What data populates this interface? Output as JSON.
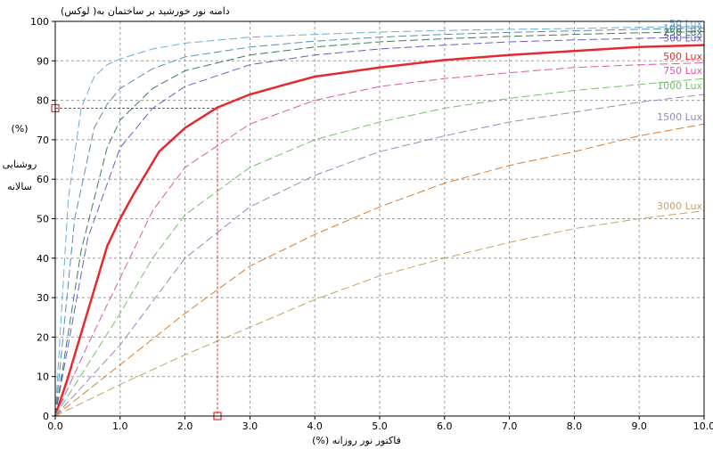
{
  "chart_data": {
    "type": "line",
    "title": "دامنه نور خورشید بر ساختمان به( لوکس)",
    "xlabel": "(%) فاکتور نور روزانه",
    "ylabel_lines": [
      "(%)",
      "روشنایی",
      "سالانه"
    ],
    "xlim": [
      0,
      10
    ],
    "ylim": [
      0,
      100
    ],
    "x_ticks": [
      "0.0",
      "1.0",
      "2.0",
      "3.0",
      "4.0",
      "5.0",
      "6.0",
      "7.0",
      "8.0",
      "9.0",
      "10.0"
    ],
    "y_ticks": [
      "0",
      "10",
      "20",
      "30",
      "40",
      "50",
      "60",
      "70",
      "80",
      "90",
      "100"
    ],
    "grid": true,
    "series": [
      {
        "name": "50 Lux",
        "color": "#6aaed8",
        "style": "dashed",
        "label_y": 99.5,
        "x": [
          0,
          0.2,
          0.4,
          0.6,
          0.8,
          1.0,
          1.5,
          2,
          3,
          4,
          5,
          6,
          7,
          8,
          9,
          10
        ],
        "y": [
          0,
          55,
          78,
          86,
          89,
          90.5,
          93,
          94.5,
          96,
          96.7,
          97.3,
          97.7,
          98,
          98.2,
          98.5,
          98.7
        ]
      },
      {
        "name": "100 Lux",
        "color": "#5a8bb3",
        "style": "dashed",
        "label_y": 98.3,
        "x": [
          0,
          0.3,
          0.6,
          0.8,
          1.0,
          1.5,
          2,
          3,
          4,
          5,
          6,
          7,
          8,
          9,
          10
        ],
        "y": [
          0,
          50,
          73,
          79,
          83,
          88,
          91,
          93.5,
          95,
          96,
          96.7,
          97.2,
          97.6,
          98,
          98.3
        ]
      },
      {
        "name": "250 Lux",
        "color": "#3f7a5e",
        "style": "dashed",
        "label_y": 97.3,
        "x": [
          0,
          0.4,
          0.8,
          1.0,
          1.5,
          2,
          3,
          4,
          5,
          6,
          7,
          8,
          9,
          10
        ],
        "y": [
          0,
          42,
          68,
          75,
          83,
          87.5,
          91.5,
          93.5,
          94.8,
          95.6,
          96.2,
          96.7,
          97.1,
          97.4
        ]
      },
      {
        "name": "300 Lux",
        "color": "#6a5acd",
        "style": "dashed",
        "label_y": 95.8,
        "x": [
          0,
          0.5,
          1.0,
          1.5,
          2,
          3,
          4,
          5,
          6,
          7,
          8,
          9,
          10
        ],
        "y": [
          0,
          45,
          68,
          78,
          83.5,
          89,
          91.5,
          93,
          94,
          94.8,
          95.3,
          95.7,
          96
        ]
      },
      {
        "name": "500 Lux",
        "color": "#e8282e",
        "style": "solid",
        "label_y": 91.2,
        "x": [
          0,
          0.2,
          0.4,
          0.6,
          0.8,
          1.0,
          1.2,
          1.6,
          2.0,
          2.5,
          3.0,
          3.5,
          4.0,
          5.0,
          6.0,
          7.0,
          8.0,
          9.0,
          10.0
        ],
        "y": [
          0,
          10,
          21,
          32,
          43,
          50,
          56,
          67,
          73,
          78.2,
          81.5,
          83.8,
          86,
          88.3,
          90.2,
          91.5,
          92.5,
          93.5,
          94
        ]
      },
      {
        "name": "750 Lux",
        "color": "#e056a6",
        "style": "dashed",
        "label_y": 87.6,
        "x": [
          0,
          0.5,
          1.0,
          1.5,
          2,
          3,
          4,
          5,
          6,
          7,
          8,
          9,
          10
        ],
        "y": [
          0,
          18,
          35,
          52,
          63,
          74,
          80,
          83.5,
          85.5,
          87,
          88.3,
          89,
          89.5
        ]
      },
      {
        "name": "1000 Lux",
        "color": "#74c068",
        "style": "dashed",
        "label_y": 83.7,
        "x": [
          0,
          0.5,
          1.0,
          1.5,
          2,
          3,
          4,
          5,
          6,
          7,
          8,
          9,
          10
        ],
        "y": [
          0,
          13,
          26,
          40,
          51,
          63,
          70,
          74.5,
          78,
          80.5,
          82.5,
          84,
          85.5
        ]
      },
      {
        "name": "1500 Lux",
        "color": "#9a86c0",
        "style": "dashed",
        "label_y": 75.8,
        "x": [
          0,
          0.5,
          1.0,
          1.5,
          2,
          3,
          4,
          5,
          6,
          7,
          8,
          9,
          10
        ],
        "y": [
          0,
          9,
          18,
          29,
          40,
          53,
          61,
          67,
          71,
          74.5,
          77,
          79.5,
          81.5
        ]
      },
      {
        "name": "",
        "color": "#e07a2a",
        "style": "dashed",
        "label_y": null,
        "x": [
          0,
          0.5,
          1.0,
          2,
          3,
          4,
          5,
          6,
          7,
          8,
          9,
          10
        ],
        "y": [
          0,
          6.5,
          13,
          26,
          38,
          46,
          53,
          59,
          63.5,
          67,
          71,
          74
        ]
      },
      {
        "name": "3000 Lux",
        "color": "#c8a06a",
        "style": "dashed",
        "label_y": 53.3,
        "x": [
          0,
          1,
          2,
          3,
          4,
          5,
          6,
          7,
          8,
          9,
          10
        ],
        "y": [
          0,
          8,
          15.5,
          22.5,
          29.5,
          35.5,
          40,
          44,
          47.5,
          50,
          52
        ]
      }
    ],
    "annotation": {
      "x": 2.5,
      "y": 78,
      "color": "#e8282e"
    }
  }
}
